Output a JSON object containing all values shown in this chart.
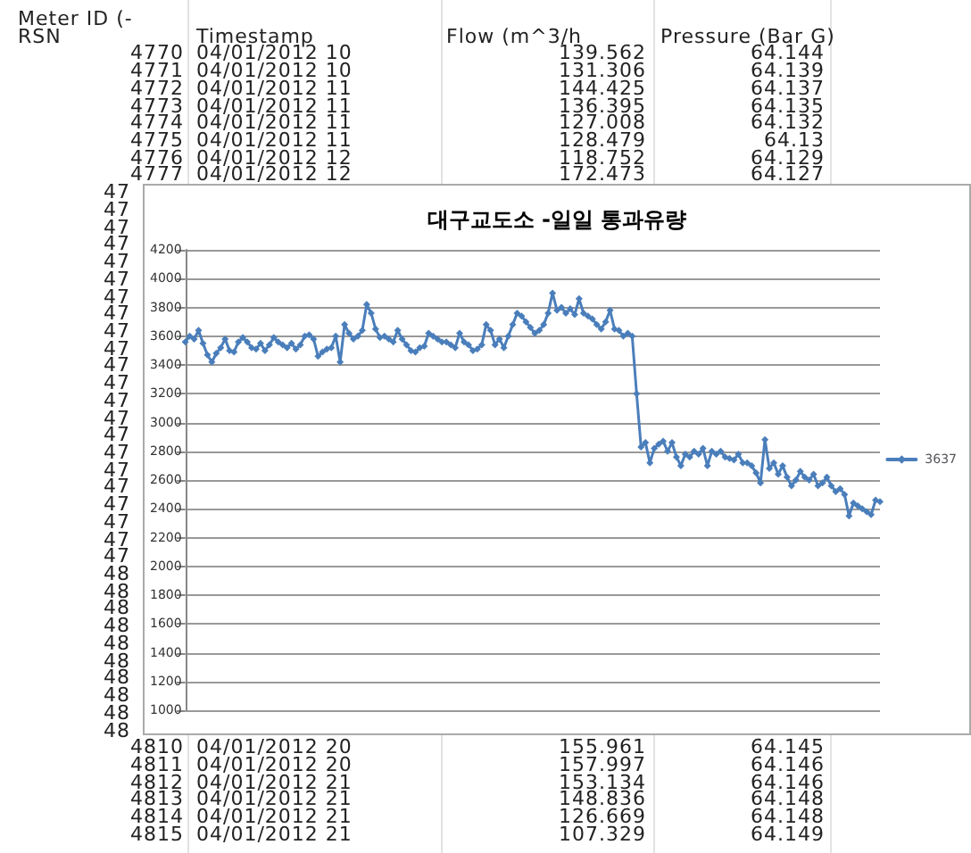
{
  "chart_data": {
    "type": "line",
    "title": "대구교도소 -일일 통과유량",
    "categories": [
      null,
      null,
      null,
      null,
      null,
      null,
      null,
      null,
      null,
      null,
      null,
      null,
      null,
      null,
      null,
      null,
      null,
      null,
      null,
      null,
      null,
      null,
      null,
      null,
      null,
      null,
      null,
      null,
      null,
      null,
      null,
      null,
      null,
      null,
      null,
      null,
      null,
      null,
      null,
      null,
      null,
      null,
      null,
      null,
      null,
      null,
      null,
      null,
      null,
      null,
      null,
      null,
      null,
      null,
      null,
      null,
      null,
      null,
      null,
      null,
      null,
      null,
      null,
      null,
      null,
      null,
      null,
      null,
      null,
      null,
      null,
      null,
      null,
      null,
      null,
      null,
      null,
      null,
      null,
      null,
      null,
      null,
      null,
      null,
      null,
      null,
      null,
      null,
      null,
      null,
      null,
      null,
      null,
      null,
      null,
      null,
      null,
      null,
      null,
      null,
      null,
      null,
      null,
      null,
      null,
      null,
      null,
      null,
      null,
      null,
      null,
      null,
      null,
      null,
      null,
      null,
      null,
      null,
      null,
      null,
      null,
      null,
      null,
      null,
      null,
      null,
      null,
      null,
      null,
      null,
      null,
      null,
      null,
      null,
      null,
      null,
      null,
      null,
      null,
      null,
      null,
      null,
      null,
      null,
      null,
      null,
      null,
      null,
      null,
      null,
      null,
      null,
      null,
      null,
      null,
      null,
      null,
      null
    ],
    "series": [
      {
        "name": "3637",
        "color": "#4a7ebb",
        "values": [
          3560,
          3600,
          3580,
          3640,
          3550,
          3470,
          3420,
          3480,
          3520,
          3580,
          3500,
          3490,
          3560,
          3590,
          3560,
          3520,
          3510,
          3550,
          3500,
          3540,
          3590,
          3560,
          3540,
          3520,
          3550,
          3510,
          3540,
          3600,
          3610,
          3580,
          3460,
          3490,
          3510,
          3520,
          3600,
          3420,
          3680,
          3620,
          3580,
          3600,
          3640,
          3820,
          3760,
          3650,
          3590,
          3600,
          3580,
          3560,
          3640,
          3580,
          3540,
          3500,
          3490,
          3520,
          3530,
          3620,
          3600,
          3580,
          3560,
          3560,
          3540,
          3520,
          3620,
          3560,
          3540,
          3500,
          3510,
          3540,
          3680,
          3640,
          3540,
          3580,
          3520,
          3600,
          3680,
          3760,
          3740,
          3700,
          3660,
          3620,
          3640,
          3680,
          3760,
          3900,
          3780,
          3800,
          3760,
          3790,
          3750,
          3860,
          3760,
          3740,
          3720,
          3680,
          3650,
          3700,
          3780,
          3650,
          3640,
          3600,
          3620,
          3600,
          3200,
          2830,
          2860,
          2720,
          2820,
          2850,
          2870,
          2800,
          2860,
          2760,
          2700,
          2780,
          2760,
          2800,
          2780,
          2820,
          2700,
          2800,
          2780,
          2800,
          2760,
          2750,
          2740,
          2780,
          2720,
          2720,
          2700,
          2650,
          2580,
          2880,
          2680,
          2720,
          2640,
          2700,
          2620,
          2560,
          2600,
          2660,
          2620,
          2600,
          2640,
          2560,
          2580,
          2620,
          2560,
          2520,
          2540,
          2500,
          2350,
          2440,
          2420,
          2400,
          2380,
          2360,
          2460,
          2450
        ]
      }
    ],
    "ylim": [
      1000,
      4200
    ],
    "yticks": [
      1000,
      1200,
      1400,
      1600,
      1800,
      2000,
      2200,
      2400,
      2600,
      2800,
      3000,
      3200,
      3400,
      3600,
      3800,
      4000,
      4200
    ],
    "grid": "y",
    "legend": "right",
    "marker": "diamond",
    "line_style": "solid",
    "tick_labels": "y",
    "annotations": [
      "Meter ID (-",
      "RSN",
      "Timestamp",
      "Flow (m^3/h",
      "Pressure (Bar G)",
      "4770",
      "04/01/2012 10",
      "139.562",
      "64.144",
      "4771",
      "04/01/2012 10",
      "131.306",
      "64.139",
      "4772",
      "04/01/2012 11",
      "144.425",
      "64.137",
      "4773",
      "04/01/2012 11",
      "136.395",
      "64.135",
      "4774",
      "04/01/2012 11",
      "127.008",
      "64.132",
      "4775",
      "04/01/2012 11",
      "128.479",
      "64.13",
      "4776",
      "04/01/2012 12",
      "118.752",
      "64.129",
      "4777",
      "04/01/2012 12",
      "172.473",
      "64.127",
      "47",
      "47",
      "47",
      "47",
      "47",
      "47",
      "47",
      "47",
      "47",
      "47",
      "47",
      "47",
      "47",
      "47",
      "47",
      "47",
      "47",
      "47",
      "47",
      "47",
      "47",
      "47",
      "48",
      "48",
      "48",
      "48",
      "48",
      "48",
      "48",
      "48",
      "48",
      "48",
      "4810",
      "04/01/2012 20",
      "155.961",
      "64.145",
      "4811",
      "04/01/2012 20",
      "157.997",
      "64.146",
      "4812",
      "04/01/2012 21",
      "153.134",
      "64.146",
      "4813",
      "04/01/2012 21",
      "148.836",
      "64.148",
      "4814",
      "04/01/2012 21",
      "126.669",
      "64.148",
      "4815",
      "04/01/2012 21",
      "107.329",
      "64.149"
    ]
  }
}
